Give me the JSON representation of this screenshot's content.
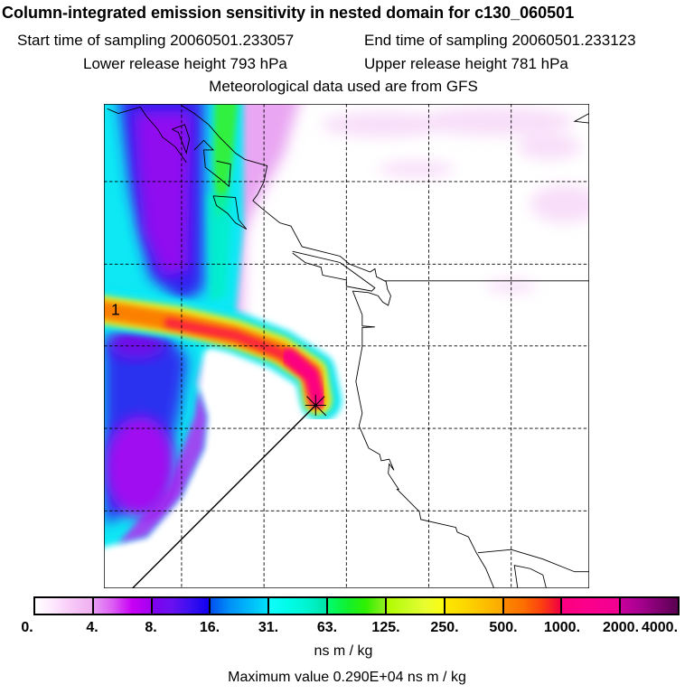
{
  "header": {
    "title": "Column-integrated emission sensitivity in nested domain for c130_060501",
    "start_time": "Start time of sampling 20060501.233057",
    "end_time": "End time of sampling 20060501.233123",
    "lower_height": "Lower release height  793 hPa",
    "upper_height": "Upper release height  781 hPa",
    "met_data": "Meteorological data used are from GFS"
  },
  "map": {
    "age_label": "1",
    "release_marker": "star-icon"
  },
  "colorbar": {
    "labels": [
      "0.",
      "4.",
      "8.",
      "16.",
      "31.",
      "63.",
      "125.",
      "250.",
      "500.",
      "1000.",
      "2000.",
      "4000."
    ],
    "segments": [
      [
        "#ffffff",
        "#fde6fd",
        "#f7c6f7",
        "#efb0f0"
      ],
      [
        "#e79cf4",
        "#dc5cf4",
        "#c800f4",
        "#a400f2"
      ],
      [
        "#8000f0",
        "#6b10f0",
        "#3c10f0",
        "#1000f0"
      ],
      [
        "#0050f0",
        "#0090f8",
        "#00b8fa",
        "#00e0fa"
      ],
      [
        "#10fcfc",
        "#00fce8",
        "#00f4d0",
        "#00e4a8"
      ],
      [
        "#00fc70",
        "#10f030",
        "#30f000",
        "#90f020"
      ],
      [
        "#b0fc00",
        "#c8fc20",
        "#e8fc30",
        "#fcfc10"
      ],
      [
        "#fce800",
        "#fcd800",
        "#fcc000",
        "#fca800"
      ],
      [
        "#fc8800",
        "#fc7000",
        "#fc4010",
        "#f00040"
      ],
      [
        "#fc0080",
        "#fc0088",
        "#f80090",
        "#f00090"
      ],
      [
        "#c8009c",
        "#a80090",
        "#800070",
        "#580050"
      ]
    ],
    "units": "ns m / kg",
    "max_value": "Maximum value  0.290E+04 ns m / kg"
  }
}
